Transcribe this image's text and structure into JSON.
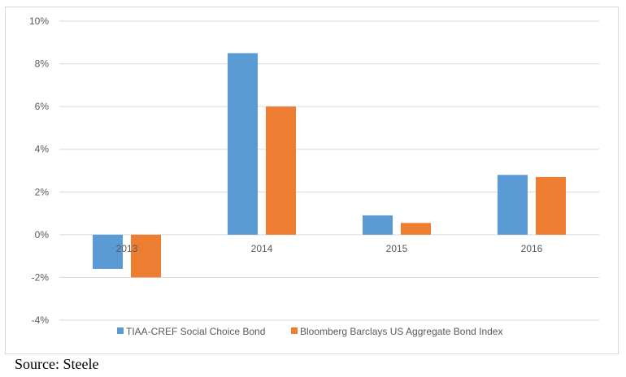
{
  "chart_data": {
    "type": "bar",
    "categories": [
      "2013",
      "2014",
      "2015",
      "2016"
    ],
    "series": [
      {
        "name": "TIAA-CREF Social Choice Bond",
        "values": [
          -1.6,
          8.5,
          0.9,
          2.8
        ],
        "color": "#5b9bd5"
      },
      {
        "name": "Bloomberg Barclays US Aggregate Bond Index",
        "values": [
          -2.0,
          6.0,
          0.55,
          2.7
        ],
        "color": "#ed7d31"
      }
    ],
    "y_ticks": [
      "-4%",
      "-2%",
      "0%",
      "2%",
      "4%",
      "6%",
      "8%",
      "10%"
    ],
    "ylim": [
      -4,
      10
    ],
    "grid": true,
    "legend_position": "bottom"
  },
  "source": "Source: Steele"
}
